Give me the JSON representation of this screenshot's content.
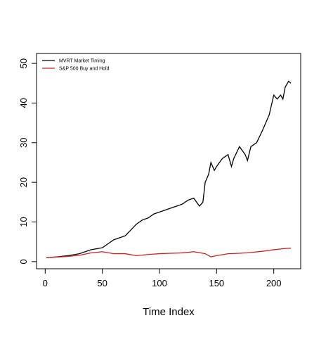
{
  "chart_data": {
    "type": "line",
    "x_label": "Time Index",
    "xlim": [
      -7.56,
      223.56
    ],
    "ylim": [
      -1.8,
      52.5
    ],
    "xticks": [
      0,
      50,
      100,
      150,
      200
    ],
    "yticks": [
      0,
      10,
      20,
      30,
      40,
      50
    ],
    "legend": "top-left",
    "series": [
      {
        "name": "MVRT Market Timing",
        "color": "#000000",
        "x": [
          1,
          10,
          20,
          30,
          40,
          50,
          55,
          60,
          65,
          70,
          75,
          80,
          85,
          90,
          95,
          100,
          105,
          110,
          115,
          120,
          125,
          130,
          135,
          138,
          140,
          143,
          145,
          148,
          150,
          155,
          160,
          163,
          165,
          170,
          175,
          177,
          180,
          185,
          190,
          193,
          196,
          200,
          203,
          206,
          208,
          210,
          213,
          215
        ],
        "values": [
          1,
          1.2,
          1.5,
          2,
          3,
          3.5,
          4.5,
          5.5,
          6,
          6.5,
          8,
          9.5,
          10.5,
          11,
          12,
          12.5,
          13,
          13.5,
          14,
          14.5,
          15.5,
          16,
          14,
          15,
          20,
          22,
          25,
          23,
          24,
          26,
          27,
          24,
          26,
          29,
          27,
          25.5,
          29,
          30,
          33,
          35,
          37,
          42,
          41,
          42,
          41,
          44,
          45.5,
          45
        ]
      },
      {
        "name": "S&P 500 Buy and Hold",
        "color": "#cc2222",
        "x": [
          1,
          20,
          30,
          40,
          50,
          60,
          70,
          80,
          90,
          100,
          110,
          120,
          130,
          140,
          145,
          150,
          160,
          170,
          180,
          190,
          200,
          210,
          215
        ],
        "values": [
          1,
          1.3,
          1.6,
          2.2,
          2.5,
          2,
          2,
          1.5,
          1.8,
          2,
          2.1,
          2.2,
          2.5,
          2,
          1.2,
          1.5,
          2,
          2.1,
          2.3,
          2.6,
          3,
          3.3,
          3.4
        ]
      }
    ]
  }
}
